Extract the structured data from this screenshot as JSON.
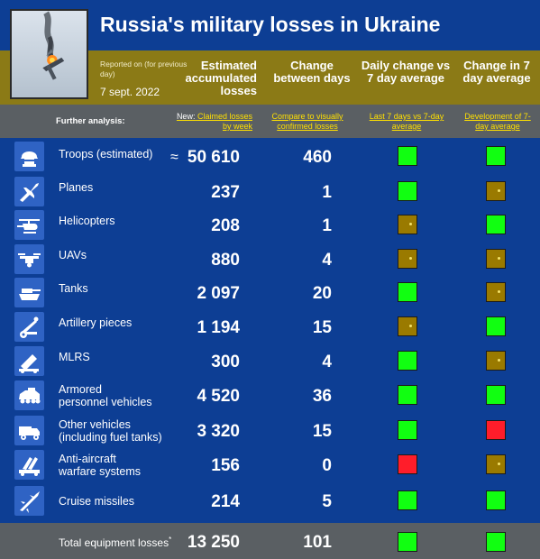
{
  "header": {
    "title": "Russia's military losses in Ukraine",
    "reported_on": "Reported on (for previous day)",
    "date": "7 sept. 2022",
    "col_accumulated": "Estimated accumulated losses",
    "col_change": "Change between days",
    "col_daily": "Daily change vs 7 day average",
    "col_seven": "Change in 7 day average"
  },
  "analysis": {
    "label": "Further analysis:",
    "new_prefix": "New:",
    "claimed_link": "Claimed losses by week",
    "compare_link": "Compare to visually confirmed losses",
    "last7_link": "Last 7 days vs 7-day average",
    "dev_link": "Development of 7-day average"
  },
  "colors": {
    "background": "#0d3e94",
    "header_band": "#8b7a16",
    "analysis_band": "#5a5f63",
    "link": "#ffe000",
    "green": "#11ff11",
    "olive": "#9a7a00",
    "red": "#ff1d2a"
  },
  "rows": [
    {
      "icon": "soldier-helmet-icon",
      "label": "Troops (estimated)",
      "approx": "≈",
      "accumulated": "50 610",
      "change": "460",
      "daily": "green",
      "seven": "green"
    },
    {
      "icon": "fighter-plane-icon",
      "label": "Planes",
      "accumulated": "237",
      "change": "1",
      "daily": "green",
      "seven": "olive"
    },
    {
      "icon": "helicopter-icon",
      "label": "Helicopters",
      "accumulated": "208",
      "change": "1",
      "daily": "olive",
      "seven": "green"
    },
    {
      "icon": "drone-icon",
      "label": "UAVs",
      "accumulated": "880",
      "change": "4",
      "daily": "olive",
      "seven": "olive"
    },
    {
      "icon": "tank-icon",
      "label": "Tanks",
      "accumulated": "2 097",
      "change": "20",
      "daily": "green",
      "seven": "olive"
    },
    {
      "icon": "artillery-icon",
      "label": "Artillery pieces",
      "accumulated": "1 194",
      "change": "15",
      "daily": "olive",
      "seven": "green"
    },
    {
      "icon": "rocket-launcher-icon",
      "label": "MLRS",
      "accumulated": "300",
      "change": "4",
      "daily": "green",
      "seven": "olive"
    },
    {
      "icon": "armored-vehicle-icon",
      "label": "Armored personnel vehicles",
      "label_line1": "Armored",
      "label_line2": "personnel vehicles",
      "accumulated": "4 520",
      "change": "36",
      "daily": "green",
      "seven": "green"
    },
    {
      "icon": "truck-icon",
      "label": "Other vehicles (including fuel tanks)",
      "label_line1": "Other vehicles",
      "label_line2": "(including fuel tanks)",
      "accumulated": "3 320",
      "change": "15",
      "daily": "green",
      "seven": "red"
    },
    {
      "icon": "anti-aircraft-icon",
      "label": "Anti-aircraft warfare systems",
      "label_line1": "Anti-aircraft",
      "label_line2": "warfare systems",
      "accumulated": "156",
      "change": "0",
      "daily": "red",
      "seven": "olive"
    },
    {
      "icon": "cruise-missile-icon",
      "label": "Cruise missiles",
      "accumulated": "214",
      "change": "5",
      "daily": "green",
      "seven": "green"
    }
  ],
  "total": {
    "label": "Total equipment losses",
    "marker": "*",
    "accumulated": "13 250",
    "change": "101",
    "daily": "green",
    "seven": "green"
  }
}
